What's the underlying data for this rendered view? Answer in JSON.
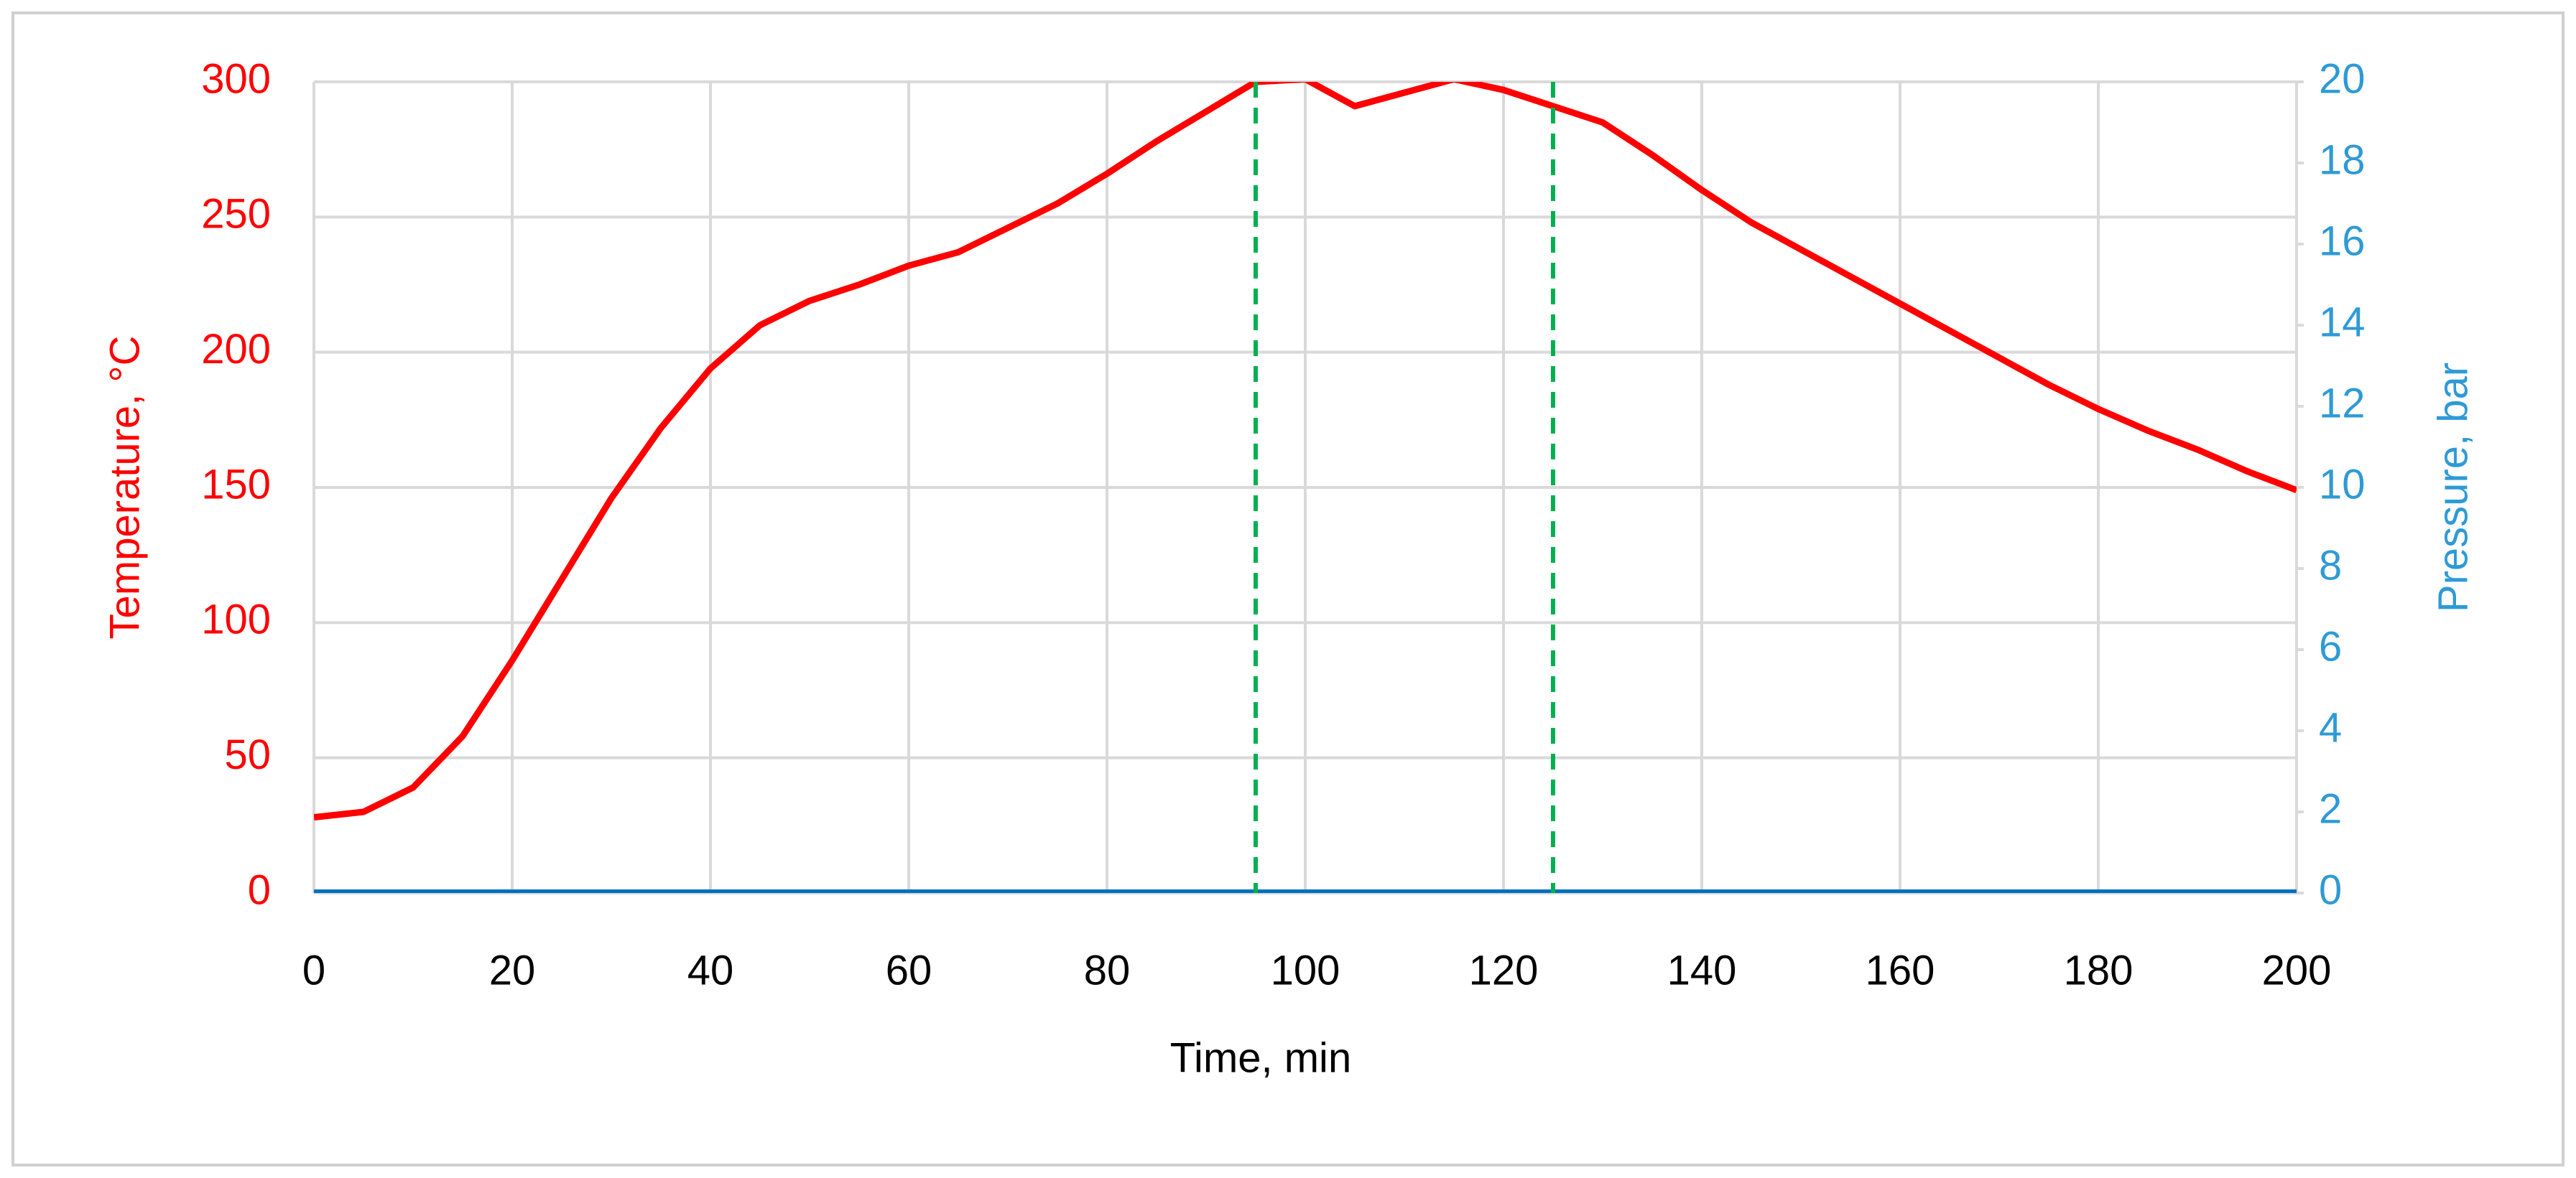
{
  "chart_data": {
    "type": "line",
    "xlabel": "Time, min",
    "ylabel": "Temperature, °C",
    "y2label": "Pressure, bar",
    "xlim": [
      0,
      200
    ],
    "xticks": [
      0,
      20,
      40,
      60,
      80,
      100,
      120,
      140,
      160,
      180,
      200
    ],
    "ylim": [
      0,
      300
    ],
    "yticks": [
      0,
      50,
      100,
      150,
      200,
      250,
      300
    ],
    "y2lim": [
      0,
      20
    ],
    "y2ticks": [
      0,
      2,
      4,
      6,
      8,
      10,
      12,
      14,
      16,
      18,
      20
    ],
    "grid": true,
    "ylabel_color": "#ff0000",
    "y2label_color": "#2e9ad6",
    "series": [
      {
        "name": "Temperature",
        "color": "#ff0000",
        "x": [
          0,
          5,
          10,
          15,
          20,
          25,
          30,
          35,
          40,
          45,
          50,
          55,
          60,
          65,
          70,
          75,
          80,
          85,
          90,
          95,
          100,
          105,
          110,
          115,
          120,
          125,
          130,
          135,
          140,
          145,
          150,
          155,
          160,
          165,
          170,
          175,
          180,
          185,
          190,
          195,
          200
        ],
        "values": [
          28,
          30,
          39,
          58,
          86,
          116,
          146,
          172,
          194,
          210,
          219,
          225,
          232,
          237,
          246,
          255,
          266,
          278,
          289,
          300,
          301,
          291,
          296,
          301,
          297,
          291,
          285,
          273,
          260,
          248,
          238,
          228,
          218,
          208,
          198,
          188,
          179,
          171,
          164,
          156,
          149
        ]
      },
      {
        "name": "Pressure",
        "color": "#0070c0",
        "axis": "y2",
        "x": [
          0,
          200
        ],
        "values": [
          0,
          0
        ]
      }
    ],
    "vlines": {
      "color": "#00b050",
      "x": [
        95,
        125
      ]
    }
  }
}
